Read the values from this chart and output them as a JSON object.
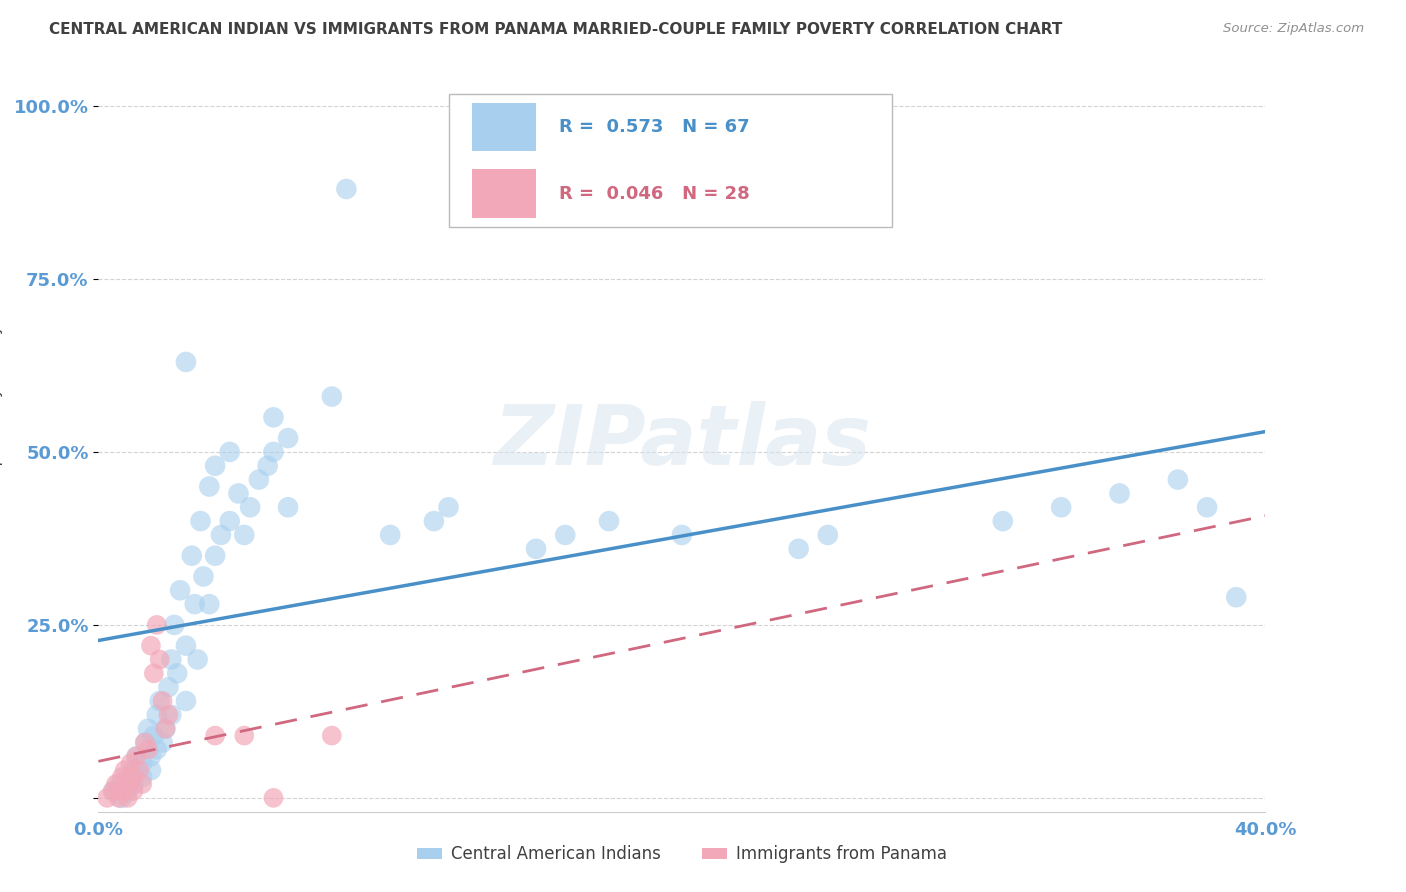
{
  "title": "CENTRAL AMERICAN INDIAN VS IMMIGRANTS FROM PANAMA MARRIED-COUPLE FAMILY POVERTY CORRELATION CHART",
  "source": "Source: ZipAtlas.com",
  "ylabel": "Married-Couple Family Poverty",
  "yticks": [
    0.0,
    0.25,
    0.5,
    0.75,
    1.0
  ],
  "ytick_labels": [
    "",
    "25.0%",
    "50.0%",
    "75.0%",
    "100.0%"
  ],
  "xticks": [
    0.0,
    0.1,
    0.2,
    0.3,
    0.4
  ],
  "xtick_labels": [
    "0.0%",
    "",
    "",
    "",
    "40.0%"
  ],
  "xlim": [
    0.0,
    0.4
  ],
  "ylim": [
    -0.02,
    1.05
  ],
  "blue_R": "0.573",
  "blue_N": "67",
  "pink_R": "0.046",
  "pink_N": "28",
  "legend_label1": "Central American Indians",
  "legend_label2": "Immigrants from Panama",
  "watermark": "ZIPatlas",
  "blue_color": "#A8CFEE",
  "pink_color": "#F2A8B8",
  "blue_line_color": "#4A90C8",
  "pink_line_color": "#D06880",
  "title_color": "#404040",
  "axis_label_color": "#5B9BD5",
  "blue_points": [
    [
      0.005,
      0.01
    ],
    [
      0.007,
      0.02
    ],
    [
      0.008,
      0.0
    ],
    [
      0.01,
      0.03
    ],
    [
      0.01,
      0.01
    ],
    [
      0.012,
      0.04
    ],
    [
      0.012,
      0.02
    ],
    [
      0.013,
      0.06
    ],
    [
      0.015,
      0.03
    ],
    [
      0.015,
      0.05
    ],
    [
      0.016,
      0.08
    ],
    [
      0.017,
      0.1
    ],
    [
      0.018,
      0.06
    ],
    [
      0.018,
      0.04
    ],
    [
      0.019,
      0.09
    ],
    [
      0.02,
      0.12
    ],
    [
      0.02,
      0.07
    ],
    [
      0.021,
      0.14
    ],
    [
      0.022,
      0.08
    ],
    [
      0.023,
      0.1
    ],
    [
      0.024,
      0.16
    ],
    [
      0.025,
      0.2
    ],
    [
      0.025,
      0.12
    ],
    [
      0.026,
      0.25
    ],
    [
      0.027,
      0.18
    ],
    [
      0.028,
      0.3
    ],
    [
      0.03,
      0.22
    ],
    [
      0.03,
      0.14
    ],
    [
      0.032,
      0.35
    ],
    [
      0.033,
      0.28
    ],
    [
      0.034,
      0.2
    ],
    [
      0.035,
      0.4
    ],
    [
      0.036,
      0.32
    ],
    [
      0.038,
      0.45
    ],
    [
      0.038,
      0.28
    ],
    [
      0.04,
      0.48
    ],
    [
      0.04,
      0.35
    ],
    [
      0.042,
      0.38
    ],
    [
      0.045,
      0.5
    ],
    [
      0.045,
      0.4
    ],
    [
      0.048,
      0.44
    ],
    [
      0.05,
      0.38
    ],
    [
      0.052,
      0.42
    ],
    [
      0.055,
      0.46
    ],
    [
      0.058,
      0.48
    ],
    [
      0.06,
      0.5
    ],
    [
      0.065,
      0.42
    ],
    [
      0.065,
      0.52
    ],
    [
      0.03,
      0.63
    ],
    [
      0.06,
      0.55
    ],
    [
      0.08,
      0.58
    ],
    [
      0.1,
      0.38
    ],
    [
      0.115,
      0.4
    ],
    [
      0.12,
      0.42
    ],
    [
      0.15,
      0.36
    ],
    [
      0.16,
      0.38
    ],
    [
      0.175,
      0.4
    ],
    [
      0.2,
      0.38
    ],
    [
      0.24,
      0.36
    ],
    [
      0.25,
      0.38
    ],
    [
      0.31,
      0.4
    ],
    [
      0.33,
      0.42
    ],
    [
      0.35,
      0.44
    ],
    [
      0.37,
      0.46
    ],
    [
      0.38,
      0.42
    ],
    [
      0.39,
      0.29
    ],
    [
      0.085,
      0.88
    ]
  ],
  "pink_points": [
    [
      0.003,
      0.0
    ],
    [
      0.005,
      0.01
    ],
    [
      0.006,
      0.02
    ],
    [
      0.007,
      0.0
    ],
    [
      0.008,
      0.03
    ],
    [
      0.008,
      0.01
    ],
    [
      0.009,
      0.04
    ],
    [
      0.01,
      0.02
    ],
    [
      0.01,
      0.0
    ],
    [
      0.011,
      0.05
    ],
    [
      0.012,
      0.03
    ],
    [
      0.012,
      0.01
    ],
    [
      0.013,
      0.06
    ],
    [
      0.014,
      0.04
    ],
    [
      0.015,
      0.02
    ],
    [
      0.016,
      0.08
    ],
    [
      0.017,
      0.07
    ],
    [
      0.018,
      0.22
    ],
    [
      0.019,
      0.18
    ],
    [
      0.02,
      0.25
    ],
    [
      0.021,
      0.2
    ],
    [
      0.022,
      0.14
    ],
    [
      0.023,
      0.1
    ],
    [
      0.024,
      0.12
    ],
    [
      0.04,
      0.09
    ],
    [
      0.05,
      0.09
    ],
    [
      0.06,
      0.0
    ],
    [
      0.08,
      0.09
    ]
  ]
}
